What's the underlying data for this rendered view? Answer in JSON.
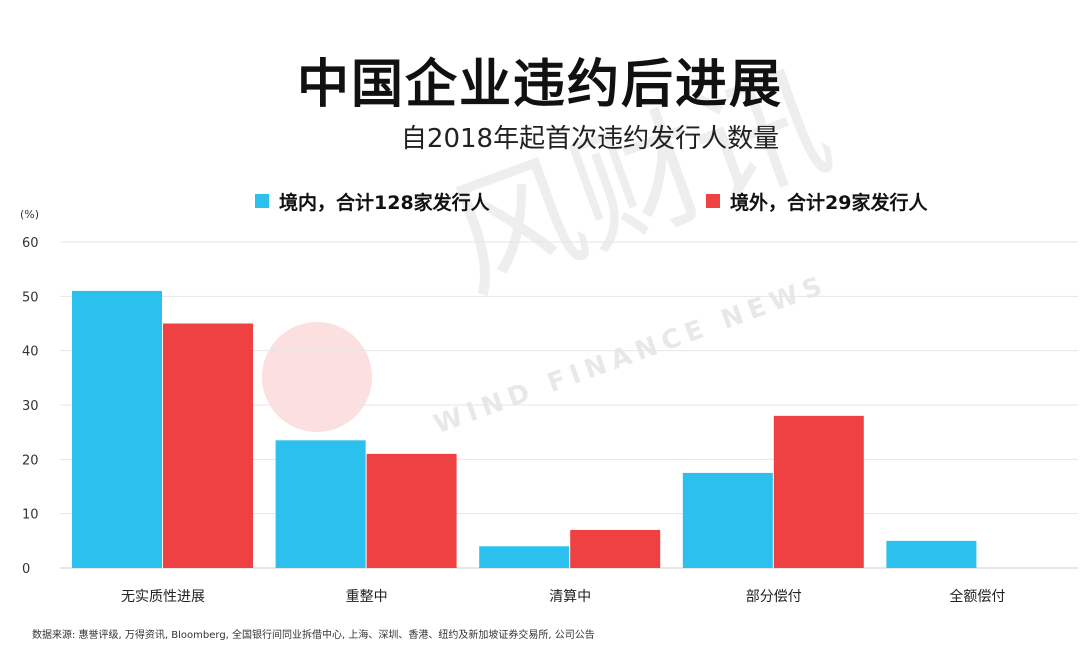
{
  "colors": {
    "domestic": "#2bc0ee",
    "overseas": "#ef4141",
    "grid": "#e6e6e6",
    "text": "#222222"
  },
  "watermark": {
    "cn": "风财讯",
    "en": "WIND FINANCE NEWS"
  },
  "source_note": "数据来源: 惠誉评级, 万得资讯, Bloomberg, 全国银行间同业拆借中心, 上海、深圳、香港、纽约及新加坡证券交易所, 公司公告",
  "chart_data": {
    "type": "bar",
    "title": "中国企业违约后进展",
    "subtitle": "自2018年起首次违约发行人数量",
    "ylabel": "(%)",
    "ylim": [
      0,
      60
    ],
    "yticks": [
      0,
      10,
      20,
      30,
      40,
      50,
      60
    ],
    "grid": true,
    "legend_position": "top",
    "categories": [
      "无实质性进展",
      "重整中",
      "清算中",
      "部分偿付",
      "全额偿付"
    ],
    "series": [
      {
        "name": "境内，合计128家发行人",
        "color": "#2bc0ee",
        "values": [
          51,
          23.5,
          4,
          17.5,
          5
        ]
      },
      {
        "name": "境外，合计29家发行人",
        "color": "#ef4141",
        "values": [
          45,
          21,
          7,
          28,
          0
        ]
      }
    ]
  }
}
